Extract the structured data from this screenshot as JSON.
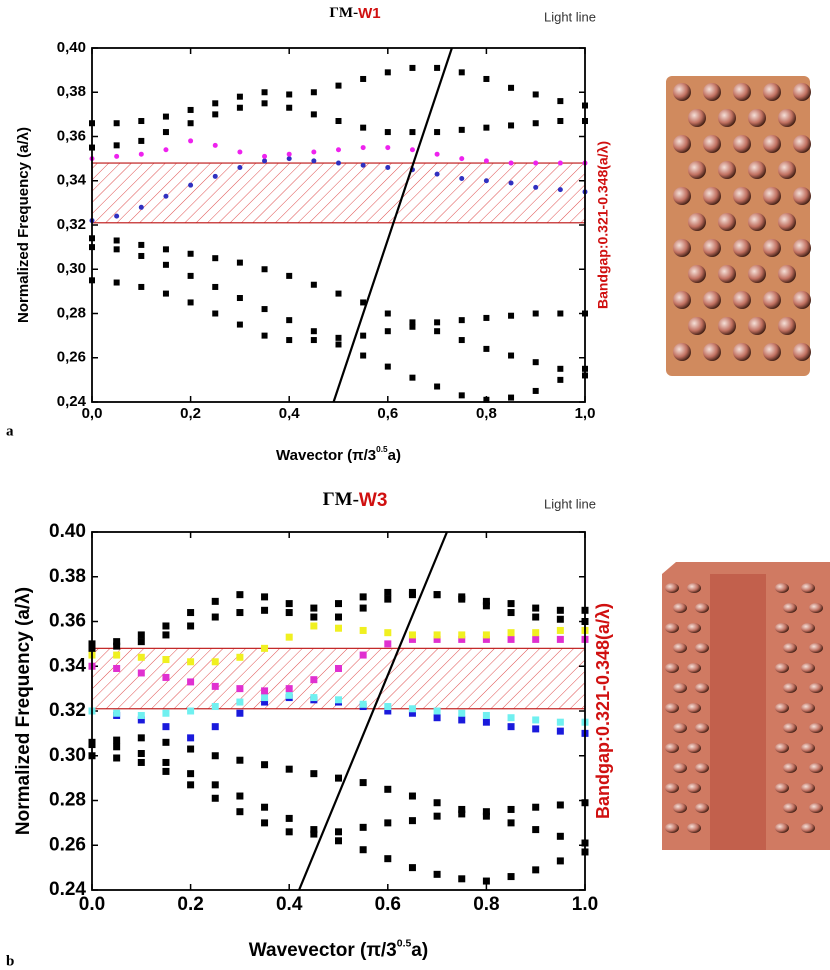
{
  "chart_data": [
    {
      "type": "scatter",
      "panel": "a",
      "title": [
        "ΓM-",
        "W1"
      ],
      "light_line_label": "Light line",
      "xlabel": [
        "Wavector (π/3",
        "0.5",
        "a)"
      ],
      "ylabel": "Normalized Frequency (a/λ)",
      "bandgap_label": "Bandgap:0.321-0.348(a/λ)",
      "bandgap_range": [
        0.321,
        0.348
      ],
      "light_line": {
        "x": [
          0.49,
          0.73
        ],
        "y": [
          0.24,
          0.4
        ]
      },
      "xlim": [
        0,
        1
      ],
      "ylim": [
        0.24,
        0.4
      ],
      "xticks": [
        {
          "value": 0,
          "label": "0,0"
        },
        {
          "value": 0.2,
          "label": "0,2"
        },
        {
          "value": 0.4,
          "label": "0,4"
        },
        {
          "value": 0.6,
          "label": "0,6"
        },
        {
          "value": 0.8,
          "label": "0,8"
        },
        {
          "value": 1,
          "label": "1,0"
        }
      ],
      "yticks": [
        {
          "value": 0.24,
          "label": "0,24"
        },
        {
          "value": 0.26,
          "label": "0,26"
        },
        {
          "value": 0.28,
          "label": "0,28"
        },
        {
          "value": 0.3,
          "label": "0,30"
        },
        {
          "value": 0.32,
          "label": "0,32"
        },
        {
          "value": 0.34,
          "label": "0,34"
        },
        {
          "value": 0.36,
          "label": "0,36"
        },
        {
          "value": 0.38,
          "label": "0,38"
        },
        {
          "value": 0.4,
          "label": "0,40"
        }
      ],
      "x": [
        0,
        0.05,
        0.1,
        0.15,
        0.2,
        0.25,
        0.3,
        0.35,
        0.4,
        0.45,
        0.5,
        0.55,
        0.6,
        0.65,
        0.7,
        0.75,
        0.8,
        0.85,
        0.9,
        0.95,
        1
      ],
      "series": [
        {
          "color": "#000000",
          "marker": "square",
          "values": [
            0.295,
            0.294,
            0.292,
            0.289,
            0.285,
            0.28,
            0.275,
            0.27,
            0.268,
            0.268,
            0.269,
            0.27,
            0.272,
            0.274,
            0.276,
            0.277,
            0.278,
            0.279,
            0.28,
            0.28,
            0.28
          ]
        },
        {
          "color": "#000000",
          "marker": "square",
          "values": [
            0.31,
            0.309,
            0.306,
            0.302,
            0.297,
            0.292,
            0.287,
            0.282,
            0.277,
            0.272,
            0.266,
            0.261,
            0.256,
            0.251,
            0.247,
            0.243,
            0.241,
            0.242,
            0.245,
            0.25,
            0.255
          ]
        },
        {
          "color": "#000000",
          "marker": "square",
          "values": [
            0.314,
            0.313,
            0.311,
            0.309,
            0.307,
            0.305,
            0.303,
            0.3,
            0.297,
            0.293,
            0.289,
            0.285,
            0.28,
            0.276,
            0.272,
            0.268,
            0.264,
            0.261,
            0.258,
            0.255,
            0.252
          ]
        },
        {
          "color": "#3030c0",
          "marker": "circle",
          "values": [
            0.322,
            0.324,
            0.328,
            0.333,
            0.338,
            0.342,
            0.346,
            0.349,
            0.35,
            0.349,
            0.348,
            0.347,
            0.346,
            0.345,
            0.343,
            0.341,
            0.34,
            0.339,
            0.337,
            0.336,
            0.335
          ]
        },
        {
          "color": "#ee22ee",
          "marker": "circle",
          "values": [
            0.35,
            0.351,
            0.352,
            0.354,
            0.358,
            0.356,
            0.353,
            0.351,
            0.352,
            0.353,
            0.354,
            0.355,
            0.355,
            0.354,
            0.352,
            0.35,
            0.349,
            0.348,
            0.348,
            0.348,
            0.348
          ]
        },
        {
          "color": "#000000",
          "marker": "square",
          "values": [
            0.355,
            0.356,
            0.358,
            0.362,
            0.366,
            0.37,
            0.373,
            0.375,
            0.373,
            0.37,
            0.367,
            0.364,
            0.362,
            0.362,
            0.362,
            0.363,
            0.364,
            0.365,
            0.366,
            0.367,
            0.367
          ]
        },
        {
          "color": "#000000",
          "marker": "square",
          "values": [
            0.366,
            0.366,
            0.367,
            0.369,
            0.372,
            0.375,
            0.378,
            0.38,
            0.379,
            0.38,
            0.383,
            0.386,
            0.389,
            0.391,
            0.391,
            0.389,
            0.386,
            0.382,
            0.379,
            0.376,
            0.374
          ]
        }
      ]
    },
    {
      "type": "scatter",
      "panel": "b",
      "title": [
        "ΓM-",
        "W3"
      ],
      "light_line_label": "Light line",
      "xlabel": [
        "Wavevector  (π/3",
        "0.5",
        "a)"
      ],
      "ylabel": "Normalized Frequency (a/λ)",
      "bandgap_label": "Bandgap:0.321-0.348(a/λ)",
      "bandgap_range": [
        0.321,
        0.348
      ],
      "light_line": {
        "x": [
          0.42,
          0.72
        ],
        "y": [
          0.24,
          0.4
        ]
      },
      "xlim": [
        0,
        1
      ],
      "ylim": [
        0.24,
        0.4
      ],
      "xticks": [
        {
          "value": 0,
          "label": "0.0"
        },
        {
          "value": 0.2,
          "label": "0.2"
        },
        {
          "value": 0.4,
          "label": "0.4"
        },
        {
          "value": 0.6,
          "label": "0.6"
        },
        {
          "value": 0.8,
          "label": "0.8"
        },
        {
          "value": 1,
          "label": "1.0"
        }
      ],
      "yticks": [
        {
          "value": 0.24,
          "label": "0.24"
        },
        {
          "value": 0.26,
          "label": "0.26"
        },
        {
          "value": 0.28,
          "label": "0.28"
        },
        {
          "value": 0.3,
          "label": "0.30"
        },
        {
          "value": 0.32,
          "label": "0.32"
        },
        {
          "value": 0.34,
          "label": "0.34"
        },
        {
          "value": 0.36,
          "label": "0.36"
        },
        {
          "value": 0.38,
          "label": "0.38"
        },
        {
          "value": 0.4,
          "label": "0.40"
        }
      ],
      "x": [
        0,
        0.05,
        0.1,
        0.15,
        0.2,
        0.25,
        0.3,
        0.35,
        0.4,
        0.45,
        0.5,
        0.55,
        0.6,
        0.65,
        0.7,
        0.75,
        0.8,
        0.85,
        0.9,
        0.95,
        1
      ],
      "series": [
        {
          "color": "#000000",
          "marker": "square",
          "values": [
            0.3,
            0.299,
            0.297,
            0.293,
            0.287,
            0.281,
            0.275,
            0.27,
            0.266,
            0.265,
            0.266,
            0.268,
            0.27,
            0.271,
            0.273,
            0.274,
            0.275,
            0.276,
            0.277,
            0.278,
            0.279
          ]
        },
        {
          "color": "#000000",
          "marker": "square",
          "values": [
            0.305,
            0.304,
            0.301,
            0.297,
            0.292,
            0.287,
            0.282,
            0.277,
            0.272,
            0.267,
            0.262,
            0.258,
            0.254,
            0.25,
            0.247,
            0.245,
            0.244,
            0.246,
            0.249,
            0.253,
            0.257
          ]
        },
        {
          "color": "#000000",
          "marker": "square",
          "values": [
            0.306,
            0.307,
            0.308,
            0.306,
            0.303,
            0.3,
            0.298,
            0.296,
            0.294,
            0.292,
            0.29,
            0.288,
            0.285,
            0.282,
            0.279,
            0.276,
            0.273,
            0.27,
            0.267,
            0.264,
            0.261
          ]
        },
        {
          "color": "#1a1adc",
          "marker": "square",
          "values": [
            0.32,
            0.318,
            0.316,
            0.313,
            0.308,
            0.313,
            0.319,
            0.324,
            0.326,
            0.325,
            0.324,
            0.322,
            0.32,
            0.319,
            0.317,
            0.316,
            0.315,
            0.313,
            0.312,
            0.311,
            0.31
          ]
        },
        {
          "color": "#70f0f0",
          "marker": "square",
          "values": [
            0.32,
            0.319,
            0.318,
            0.319,
            0.32,
            0.322,
            0.324,
            0.326,
            0.327,
            0.326,
            0.325,
            0.323,
            0.322,
            0.321,
            0.32,
            0.319,
            0.318,
            0.317,
            0.316,
            0.315,
            0.315
          ]
        },
        {
          "color": "#e030d0",
          "marker": "square",
          "values": [
            0.34,
            0.339,
            0.337,
            0.335,
            0.333,
            0.331,
            0.33,
            0.329,
            0.33,
            0.334,
            0.339,
            0.345,
            0.35,
            0.352,
            0.352,
            0.352,
            0.352,
            0.352,
            0.352,
            0.352,
            0.352
          ]
        },
        {
          "color": "#f0f020",
          "marker": "square",
          "values": [
            0.345,
            0.345,
            0.344,
            0.343,
            0.342,
            0.342,
            0.344,
            0.348,
            0.353,
            0.358,
            0.357,
            0.356,
            0.355,
            0.354,
            0.354,
            0.354,
            0.354,
            0.355,
            0.355,
            0.356,
            0.356
          ]
        },
        {
          "color": "#000000",
          "marker": "square",
          "values": [
            0.348,
            0.349,
            0.351,
            0.354,
            0.358,
            0.362,
            0.364,
            0.365,
            0.364,
            0.362,
            0.362,
            0.366,
            0.37,
            0.372,
            0.372,
            0.37,
            0.367,
            0.364,
            0.362,
            0.361,
            0.36
          ]
        },
        {
          "color": "#000000",
          "marker": "square",
          "values": [
            0.35,
            0.351,
            0.354,
            0.358,
            0.364,
            0.369,
            0.372,
            0.371,
            0.368,
            0.366,
            0.368,
            0.371,
            0.373,
            0.373,
            0.372,
            0.371,
            0.369,
            0.368,
            0.366,
            0.365,
            0.365
          ]
        }
      ]
    }
  ]
}
